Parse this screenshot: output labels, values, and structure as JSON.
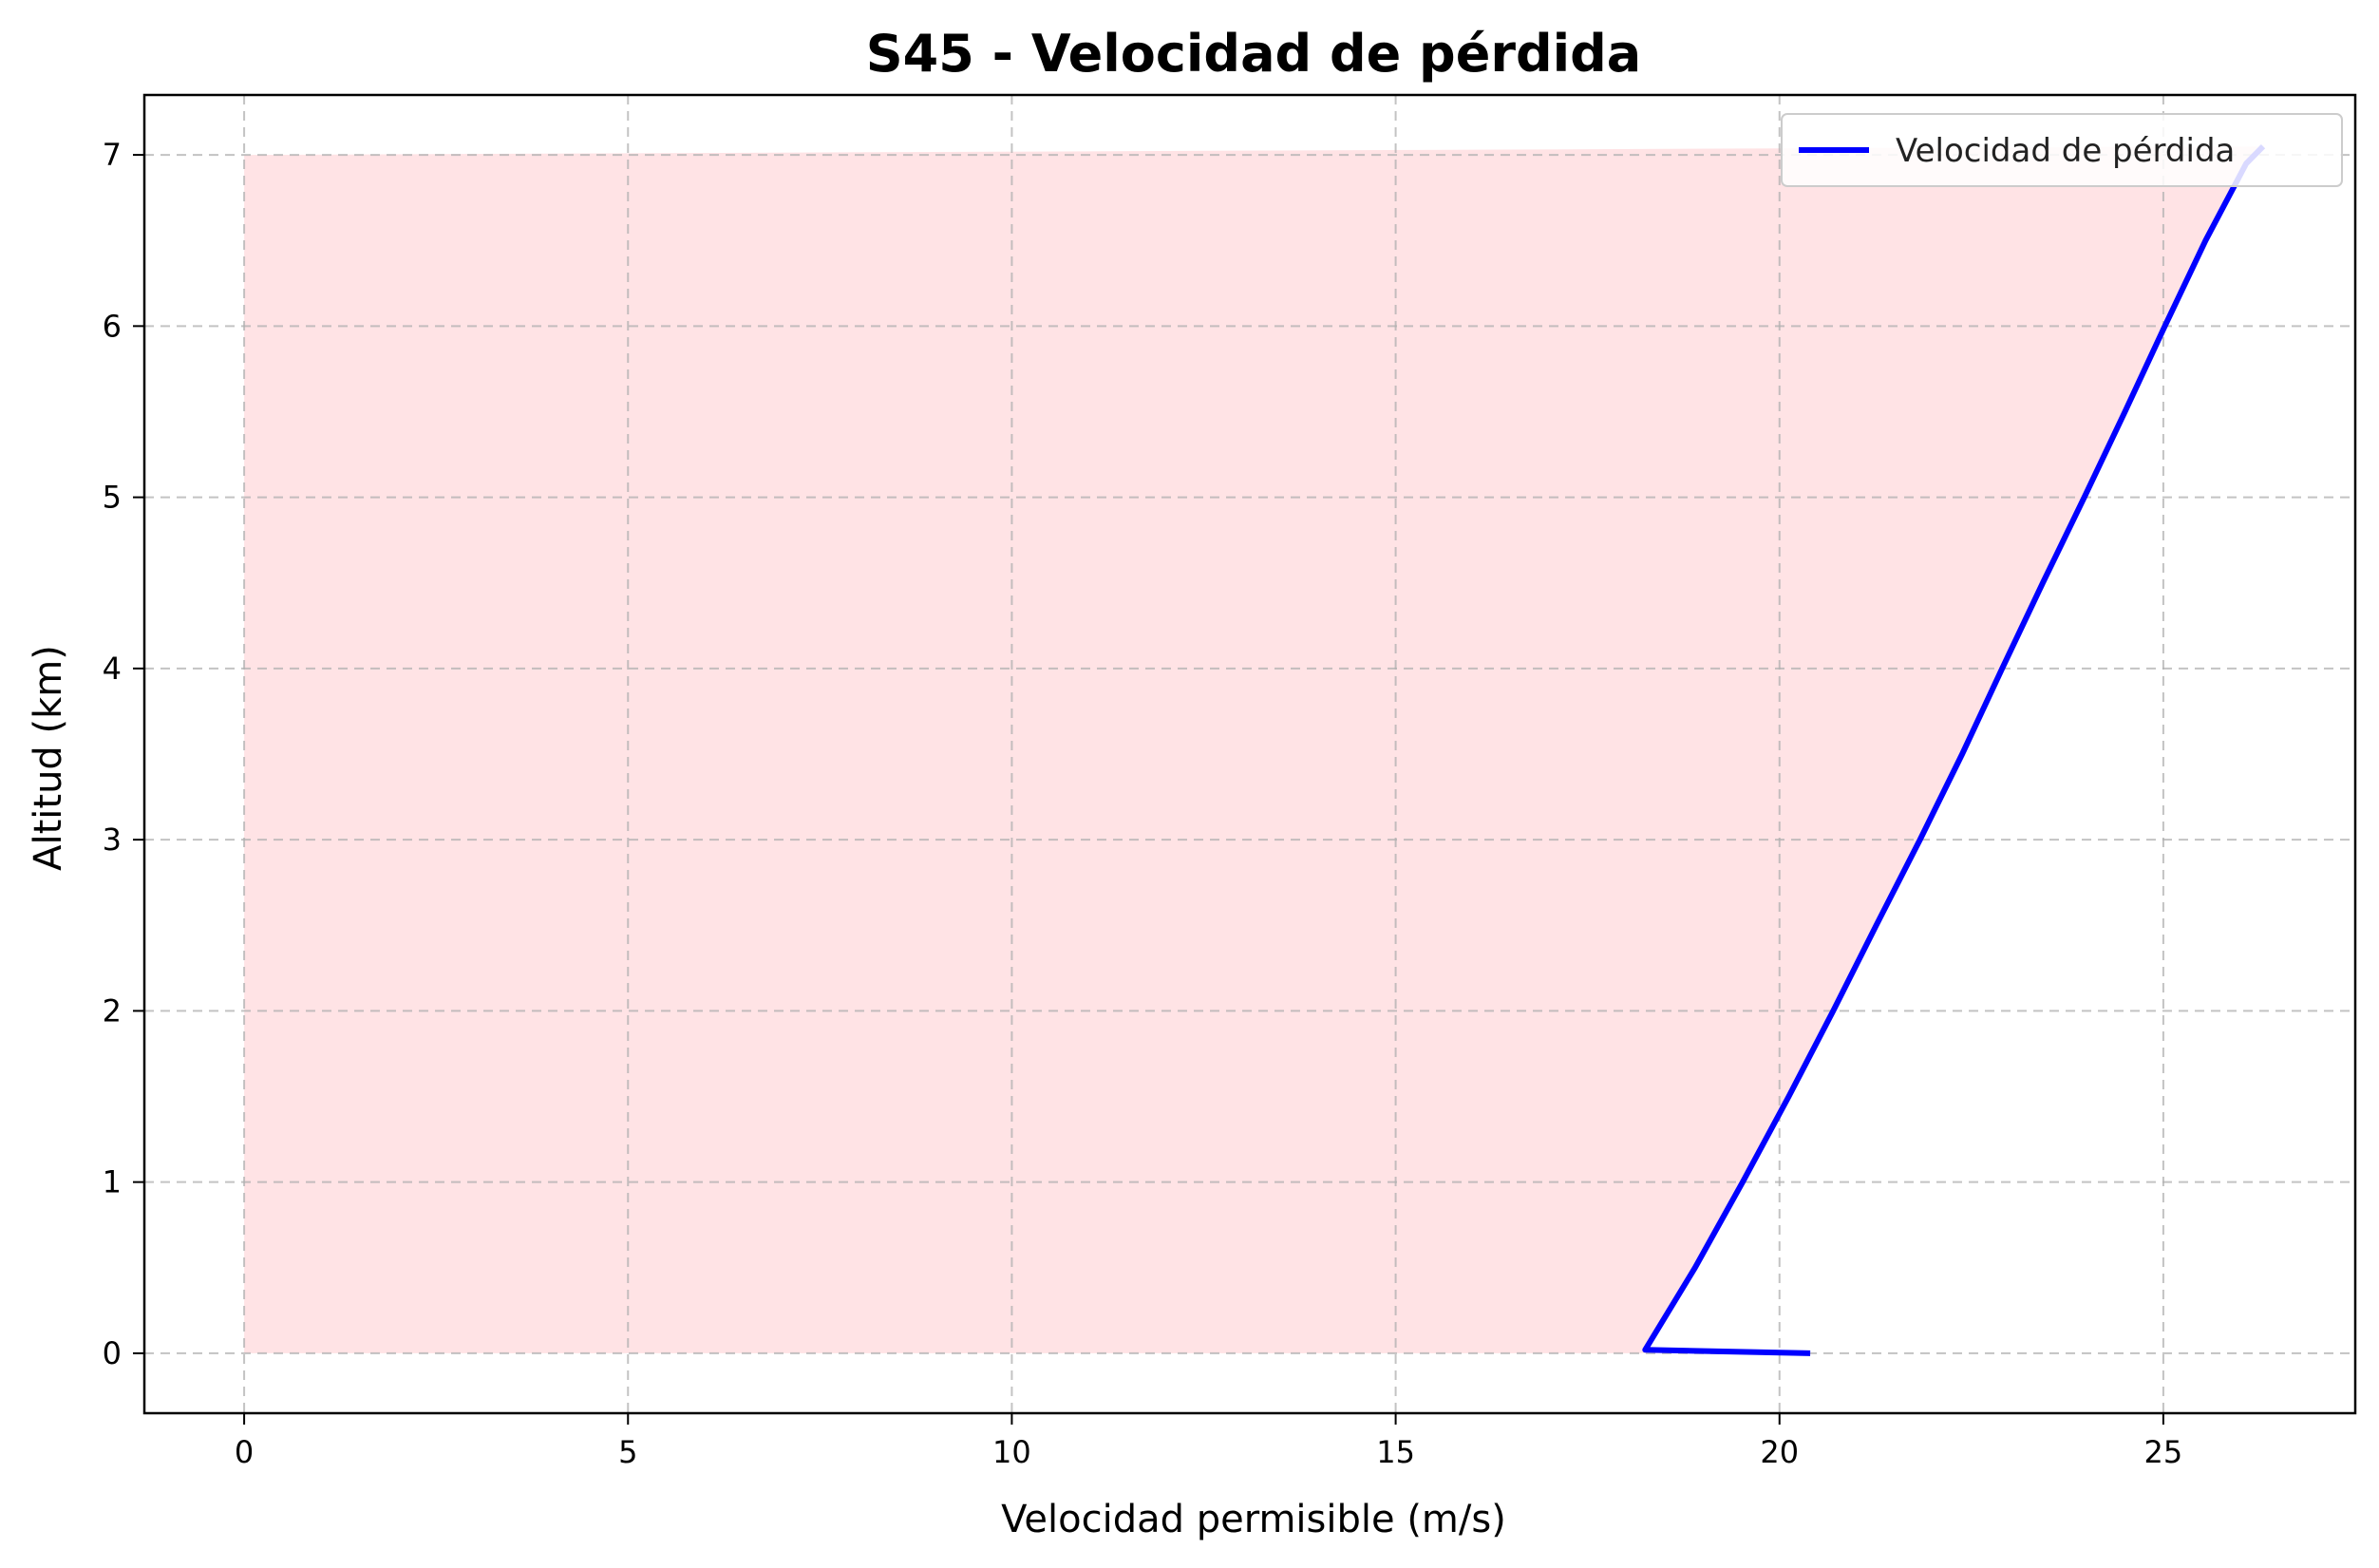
{
  "chart_data": {
    "type": "line",
    "title": "S45 - Velocidad de pérdida",
    "xlabel": "Velocidad permisible (m/s)",
    "ylabel": "Altitud (km)",
    "xlim": [
      -1.3,
      27.5
    ],
    "ylim": [
      -0.35,
      7.35
    ],
    "xticks": [
      0,
      5,
      10,
      15,
      20,
      25
    ],
    "yticks": [
      0,
      1,
      2,
      3,
      4,
      5,
      6,
      7
    ],
    "grid": true,
    "legend_position": "top-right",
    "fill_region": {
      "x_from": 0,
      "y_from": 0,
      "y_to": 7,
      "color": "#ffe3e5"
    },
    "series": [
      {
        "name": "Velocidad de pérdida",
        "color": "#0000ff",
        "x": [
          20.4,
          18.25,
          18.9,
          19.52,
          20.12,
          20.7,
          21.26,
          21.83,
          22.38,
          22.9,
          23.43,
          23.97,
          24.5,
          25.02,
          25.55,
          26.08,
          26.3
        ],
        "y": [
          0.0,
          0.02,
          0.5,
          1.0,
          1.5,
          2.0,
          2.5,
          3.0,
          3.5,
          4.0,
          4.5,
          5.0,
          5.5,
          6.0,
          6.5,
          6.95,
          7.05
        ]
      }
    ]
  }
}
